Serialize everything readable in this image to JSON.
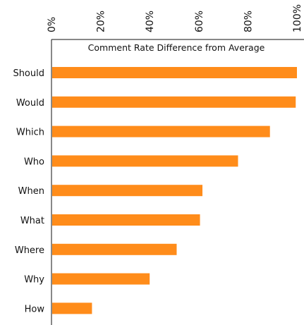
{
  "chart_data": {
    "type": "bar",
    "orientation": "horizontal",
    "title": "Comment Rate Difference from Average",
    "categories": [
      "Should",
      "Would",
      "Which",
      "Who",
      "When",
      "What",
      "Where",
      "Why",
      "How"
    ],
    "values": [
      100,
      99.5,
      89,
      76,
      61.5,
      60.5,
      51,
      40,
      16.5
    ],
    "xlim": [
      0,
      100
    ],
    "x_ticks": [
      "0%",
      "20%",
      "40%",
      "60%",
      "80%",
      "100%"
    ],
    "x_tick_values": [
      0,
      20,
      40,
      60,
      80,
      100
    ],
    "x_axis_position": "top",
    "tick_label_orientation": "vertical",
    "grid": false,
    "bar_color": "#ff8c1a"
  }
}
